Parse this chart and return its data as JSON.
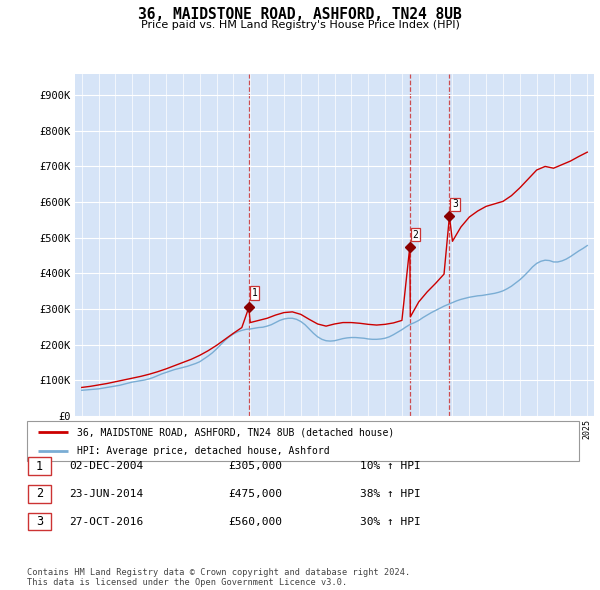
{
  "title": "36, MAIDSTONE ROAD, ASHFORD, TN24 8UB",
  "subtitle": "Price paid vs. HM Land Registry's House Price Index (HPI)",
  "plot_bg_color": "#d6e4f7",
  "ytick_vals": [
    0,
    100000,
    200000,
    300000,
    400000,
    500000,
    600000,
    700000,
    800000,
    900000
  ],
  "ylim": [
    0,
    960000
  ],
  "purchases": [
    {
      "date_num": 2004.92,
      "price": 305000,
      "label": "1"
    },
    {
      "date_num": 2014.47,
      "price": 475000,
      "label": "2"
    },
    {
      "date_num": 2016.82,
      "price": 560000,
      "label": "3"
    }
  ],
  "vline_dates": [
    2004.92,
    2014.47,
    2016.82
  ],
  "legend_entries": [
    "36, MAIDSTONE ROAD, ASHFORD, TN24 8UB (detached house)",
    "HPI: Average price, detached house, Ashford"
  ],
  "table_rows": [
    {
      "num": "1",
      "date": "02-DEC-2004",
      "price": "£305,000",
      "pct": "10% ↑ HPI"
    },
    {
      "num": "2",
      "date": "23-JUN-2014",
      "price": "£475,000",
      "pct": "38% ↑ HPI"
    },
    {
      "num": "3",
      "date": "27-OCT-2016",
      "price": "£560,000",
      "pct": "30% ↑ HPI"
    }
  ],
  "footer": "Contains HM Land Registry data © Crown copyright and database right 2024.\nThis data is licensed under the Open Government Licence v3.0.",
  "red_line_color": "#cc0000",
  "blue_line_color": "#7aadd4",
  "vline_color": "#cc3333",
  "marker_color": "#8b0000",
  "hpi_x": [
    1995.0,
    1995.25,
    1995.5,
    1995.75,
    1996.0,
    1996.25,
    1996.5,
    1996.75,
    1997.0,
    1997.25,
    1997.5,
    1997.75,
    1998.0,
    1998.25,
    1998.5,
    1998.75,
    1999.0,
    1999.25,
    1999.5,
    1999.75,
    2000.0,
    2000.25,
    2000.5,
    2000.75,
    2001.0,
    2001.25,
    2001.5,
    2001.75,
    2002.0,
    2002.25,
    2002.5,
    2002.75,
    2003.0,
    2003.25,
    2003.5,
    2003.75,
    2004.0,
    2004.25,
    2004.5,
    2004.75,
    2005.0,
    2005.25,
    2005.5,
    2005.75,
    2006.0,
    2006.25,
    2006.5,
    2006.75,
    2007.0,
    2007.25,
    2007.5,
    2007.75,
    2008.0,
    2008.25,
    2008.5,
    2008.75,
    2009.0,
    2009.25,
    2009.5,
    2009.75,
    2010.0,
    2010.25,
    2010.5,
    2010.75,
    2011.0,
    2011.25,
    2011.5,
    2011.75,
    2012.0,
    2012.25,
    2012.5,
    2012.75,
    2013.0,
    2013.25,
    2013.5,
    2013.75,
    2014.0,
    2014.25,
    2014.5,
    2014.75,
    2015.0,
    2015.25,
    2015.5,
    2015.75,
    2016.0,
    2016.25,
    2016.5,
    2016.75,
    2017.0,
    2017.25,
    2017.5,
    2017.75,
    2018.0,
    2018.25,
    2018.5,
    2018.75,
    2019.0,
    2019.25,
    2019.5,
    2019.75,
    2020.0,
    2020.25,
    2020.5,
    2020.75,
    2021.0,
    2021.25,
    2021.5,
    2021.75,
    2022.0,
    2022.25,
    2022.5,
    2022.75,
    2023.0,
    2023.25,
    2023.5,
    2023.75,
    2024.0,
    2024.25,
    2024.5,
    2024.75,
    2025.0
  ],
  "hpi_y": [
    72000,
    73000,
    74000,
    75000,
    76000,
    78000,
    80000,
    82000,
    84000,
    86000,
    89000,
    92000,
    95000,
    97000,
    99000,
    101000,
    104000,
    108000,
    113000,
    118000,
    122000,
    126000,
    130000,
    133000,
    136000,
    139000,
    143000,
    147000,
    152000,
    160000,
    168000,
    177000,
    188000,
    200000,
    212000,
    222000,
    230000,
    236000,
    240000,
    243000,
    244000,
    246000,
    248000,
    249000,
    252000,
    256000,
    262000,
    268000,
    272000,
    274000,
    274000,
    271000,
    265000,
    256000,
    244000,
    232000,
    222000,
    215000,
    211000,
    210000,
    211000,
    214000,
    217000,
    219000,
    220000,
    220000,
    219000,
    218000,
    216000,
    215000,
    215000,
    216000,
    218000,
    222000,
    228000,
    235000,
    242000,
    250000,
    257000,
    262000,
    268000,
    276000,
    283000,
    290000,
    296000,
    302000,
    308000,
    313000,
    318000,
    323000,
    327000,
    330000,
    333000,
    335000,
    337000,
    338000,
    340000,
    342000,
    344000,
    347000,
    351000,
    357000,
    364000,
    373000,
    382000,
    393000,
    405000,
    418000,
    428000,
    434000,
    437000,
    436000,
    432000,
    432000,
    435000,
    440000,
    447000,
    455000,
    463000,
    470000,
    478000
  ],
  "price_x": [
    1995.0,
    1995.5,
    1996.0,
    1996.5,
    1997.0,
    1997.5,
    1998.0,
    1998.5,
    1999.0,
    1999.5,
    2000.0,
    2000.5,
    2001.0,
    2001.5,
    2002.0,
    2002.5,
    2003.0,
    2003.5,
    2004.0,
    2004.5,
    2004.92,
    2005.0,
    2005.5,
    2006.0,
    2006.5,
    2007.0,
    2007.5,
    2008.0,
    2008.5,
    2009.0,
    2009.5,
    2010.0,
    2010.5,
    2011.0,
    2011.5,
    2012.0,
    2012.5,
    2013.0,
    2013.5,
    2014.0,
    2014.47,
    2014.5,
    2015.0,
    2015.5,
    2016.0,
    2016.5,
    2016.82,
    2017.0,
    2017.5,
    2018.0,
    2018.5,
    2019.0,
    2019.5,
    2020.0,
    2020.5,
    2021.0,
    2021.5,
    2022.0,
    2022.5,
    2023.0,
    2023.5,
    2024.0,
    2024.5,
    2025.0
  ],
  "price_y": [
    80000,
    83000,
    87000,
    91000,
    96000,
    101000,
    106000,
    111000,
    117000,
    124000,
    132000,
    141000,
    150000,
    159000,
    170000,
    183000,
    198000,
    215000,
    232000,
    248000,
    305000,
    262000,
    268000,
    274000,
    283000,
    290000,
    292000,
    285000,
    271000,
    258000,
    252000,
    258000,
    262000,
    262000,
    260000,
    257000,
    255000,
    257000,
    261000,
    268000,
    475000,
    278000,
    320000,
    348000,
    372000,
    398000,
    560000,
    490000,
    530000,
    558000,
    575000,
    588000,
    595000,
    602000,
    618000,
    640000,
    665000,
    690000,
    700000,
    695000,
    705000,
    715000,
    728000,
    740000
  ]
}
